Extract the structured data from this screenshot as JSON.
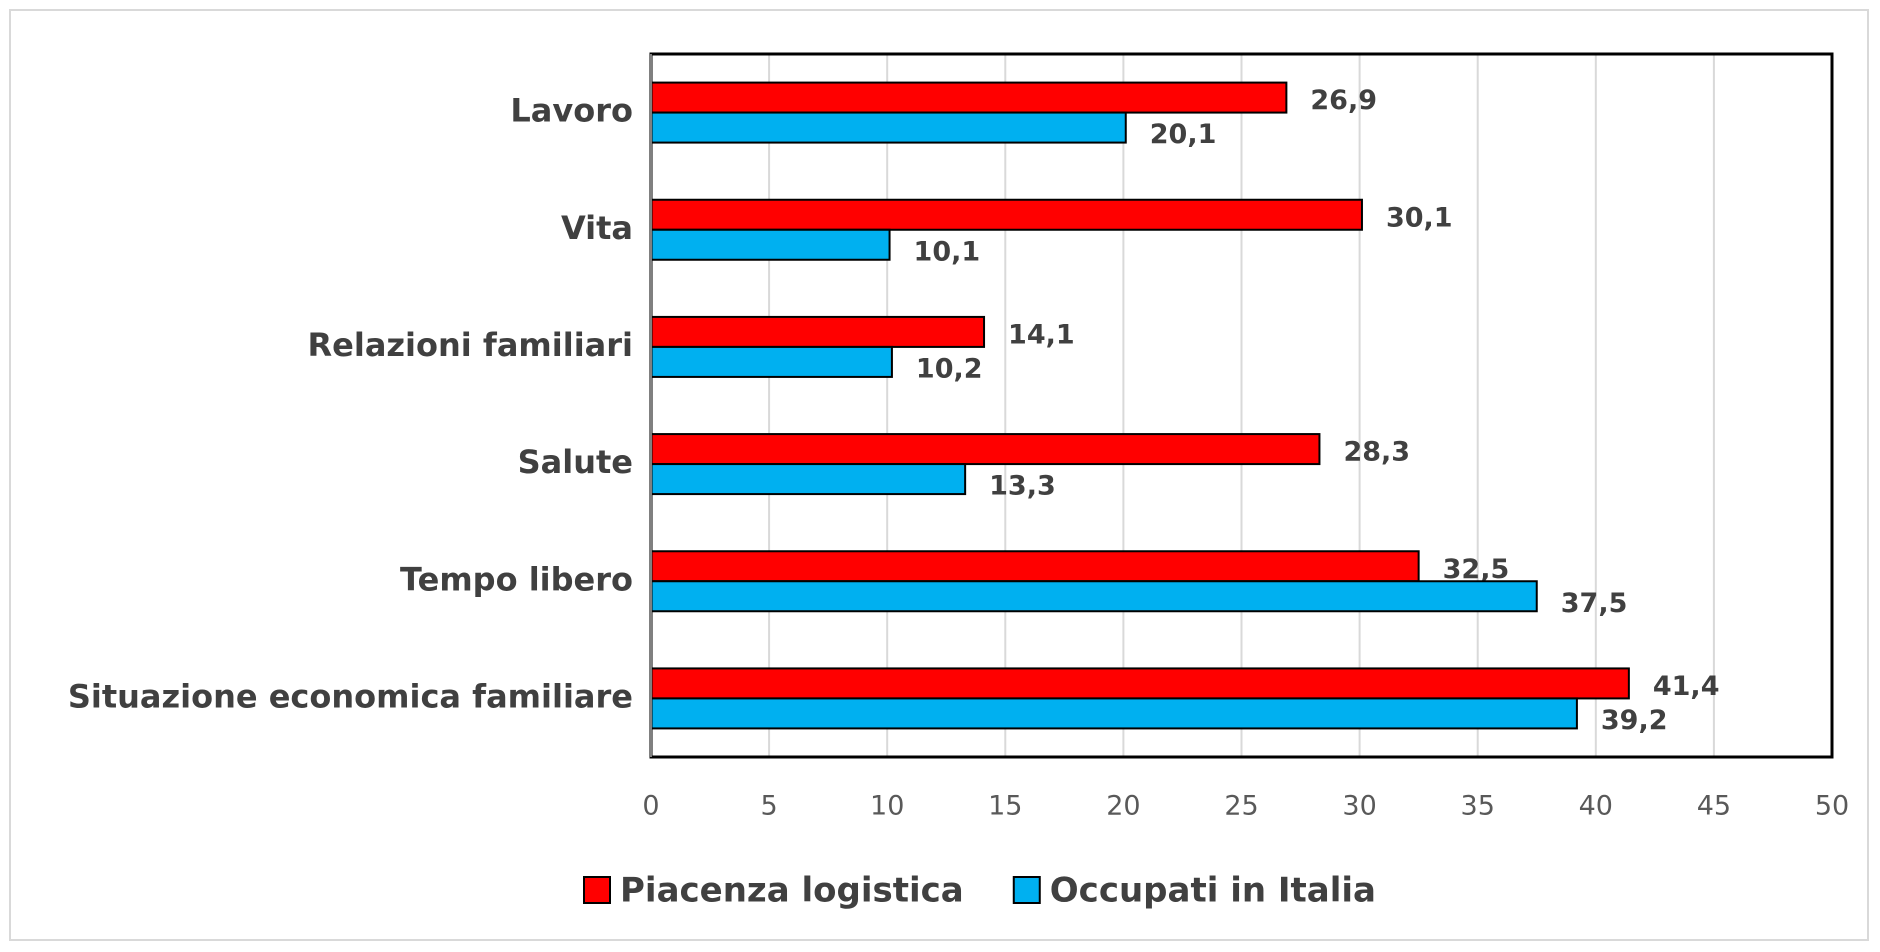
{
  "chart_data": {
    "type": "hbar",
    "categories": [
      "Lavoro",
      "Vita",
      "Relazioni familiari",
      "Salute",
      "Tempo libero",
      "Situazione economica familiare"
    ],
    "series": [
      {
        "name": "Piacenza logistica",
        "color": "#ff0000",
        "values": [
          26.9,
          30.1,
          14.1,
          28.3,
          32.5,
          41.4
        ],
        "value_labels": [
          "26,9",
          "30,1",
          "14,1",
          "28,3",
          "32,5",
          "41,4"
        ]
      },
      {
        "name": "Occupati in Italia",
        "color": "#00b0f0",
        "values": [
          20.1,
          10.1,
          10.2,
          13.3,
          37.5,
          39.2
        ],
        "value_labels": [
          "20,1",
          "10,1",
          "10,2",
          "13,3",
          "37,5",
          "39,2"
        ]
      }
    ],
    "xlim": [
      0,
      50
    ],
    "xticks": [
      0,
      5,
      10,
      15,
      20,
      25,
      30,
      35,
      40,
      45,
      50
    ],
    "grid": true,
    "legend": "bottom"
  }
}
